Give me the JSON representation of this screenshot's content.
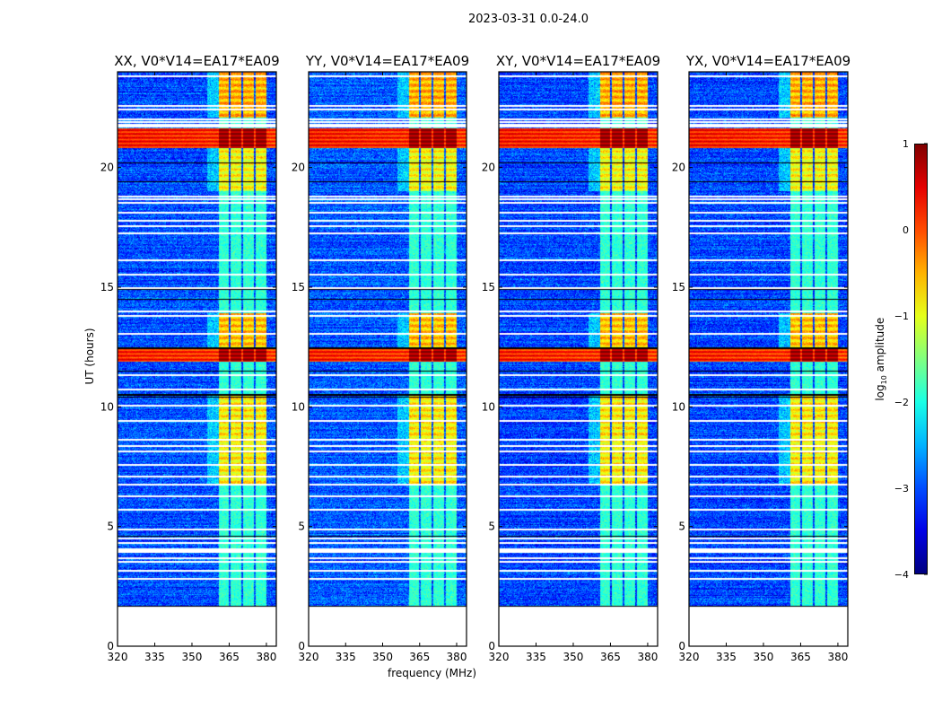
{
  "suptitle": "2023-03-31 0.0-24.0",
  "chart_data": {
    "type": "heatmap",
    "title": "2023-03-31 0.0-24.0",
    "xlabel": "frequency (MHz)",
    "ylabel": "UT (hours)",
    "xlim": [
      320,
      384
    ],
    "ylim": [
      0,
      24
    ],
    "xticks": [
      320,
      335,
      350,
      365,
      380
    ],
    "yticks": [
      0,
      5,
      10,
      15,
      20
    ],
    "panels": [
      {
        "title": "XX, V0*V14=EA17*EA09",
        "seed": 11,
        "bg": -3.0
      },
      {
        "title": "YY, V0*V14=EA17*EA09",
        "seed": 23,
        "bg": -2.95
      },
      {
        "title": "XY, V0*V14=EA17*EA09",
        "seed": 37,
        "bg": -3.05
      },
      {
        "title": "YX, V0*V14=EA17*EA09",
        "seed": 51,
        "bg": -3.05
      }
    ],
    "data_start_hour": 1.65,
    "rfi_channels_mhz": [
      [
        360.8,
        364.8
      ],
      [
        365.5,
        369.9
      ],
      [
        370.6,
        374.9
      ],
      [
        375.6,
        379.9
      ]
    ],
    "rfi_strong_periods_hours": [
      [
        22.1,
        24.0,
        -0.5
      ],
      [
        19.0,
        20.8,
        -0.9
      ],
      [
        12.5,
        13.9,
        -0.6
      ],
      [
        6.7,
        10.5,
        -0.8
      ]
    ],
    "rfi_quiet_level": -1.9,
    "broadband_rfi_hours": [
      [
        20.8,
        21.65,
        0.3
      ],
      [
        11.9,
        12.5,
        0.25
      ]
    ],
    "flagged_white_hours": [
      23.81,
      22.57,
      22.42,
      22.01,
      21.9,
      21.8,
      21.7,
      18.79,
      18.67,
      18.52,
      18.11,
      17.77,
      17.55,
      17.25,
      16.13,
      15.53,
      14.96,
      13.99,
      13.8,
      13.05,
      11.33,
      10.73,
      10.05,
      9.41,
      8.63,
      8.36,
      8.14,
      7.58,
      7.09,
      6.75,
      6.26,
      5.7,
      4.88,
      4.5,
      4.31,
      4.05,
      3.98,
      3.92,
      3.68,
      3.53,
      3.15,
      2.81
    ],
    "flagged_black_hours": [
      22.0,
      20.2,
      19.4,
      14.9,
      14.5,
      12.45,
      10.5,
      10.4,
      11.5,
      4.6,
      1.65
    ],
    "colorbar": {
      "label": "log10 amplitude",
      "label_base": "log",
      "label_sub": "10",
      "label_rest": " amplitude",
      "range": [
        -4,
        1
      ],
      "ticks": [
        1,
        0,
        -1,
        -2,
        -3,
        -4
      ],
      "tick_labels": [
        "1",
        "0",
        "−1",
        "−2",
        "−3",
        "−4"
      ],
      "colormap": "jet"
    }
  }
}
